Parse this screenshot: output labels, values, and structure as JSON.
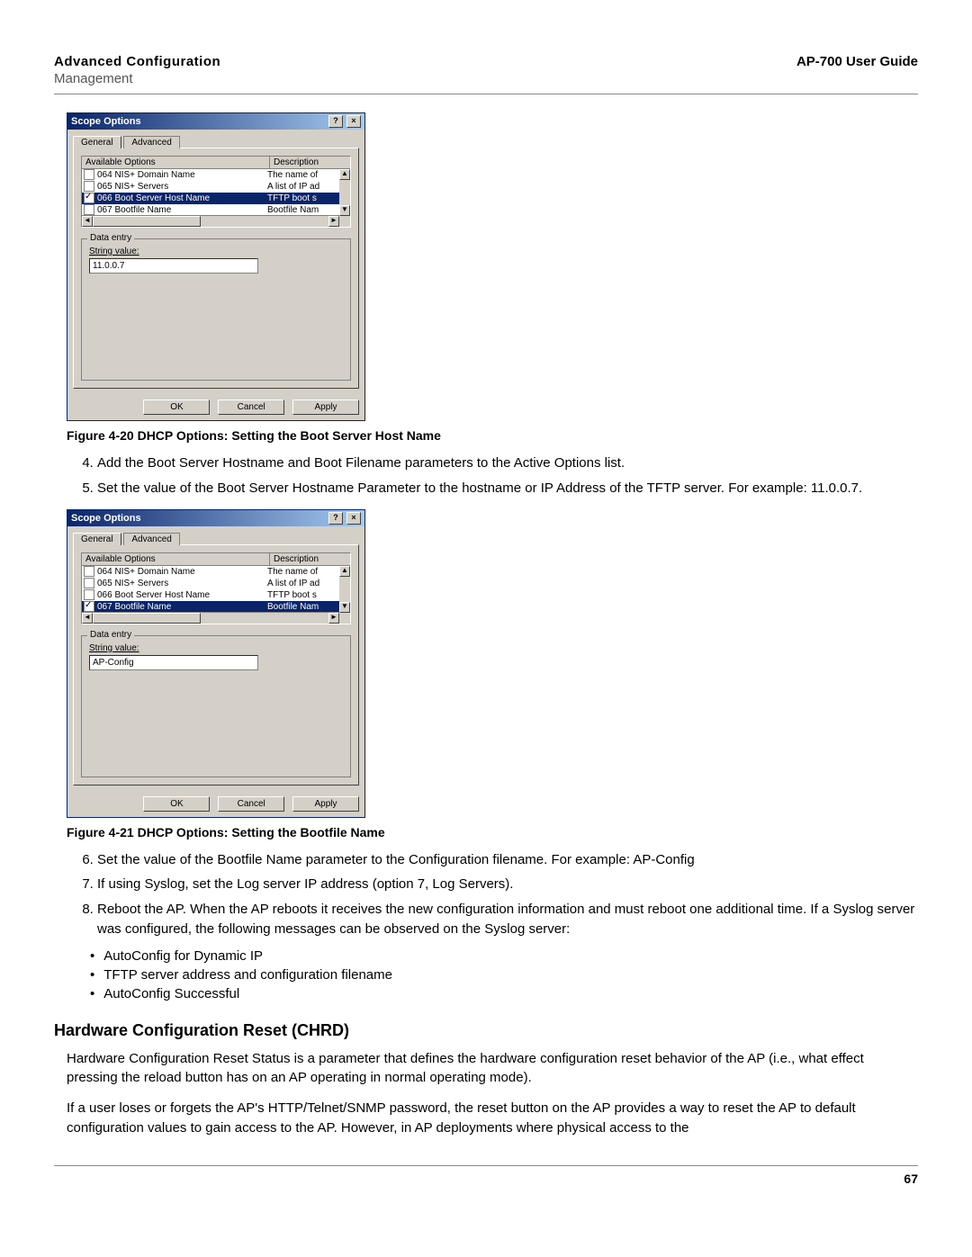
{
  "header": {
    "left_title": "Advanced Configuration",
    "subtitle": "Management",
    "right_title": "AP-700 User Guide"
  },
  "dialog1": {
    "title": "Scope Options",
    "tabs": {
      "general": "General",
      "advanced": "Advanced"
    },
    "columns": {
      "available": "Available Options",
      "description": "Description"
    },
    "rows": [
      {
        "checked": false,
        "name": "064 NIS+ Domain Name",
        "desc": "The name of"
      },
      {
        "checked": false,
        "name": "065 NIS+ Servers",
        "desc": "A list of IP ad"
      },
      {
        "checked": true,
        "selected": true,
        "name": "066 Boot Server Host Name",
        "desc": "TFTP boot s"
      },
      {
        "checked": false,
        "name": "067 Bootfile Name",
        "desc": "Bootfile Nam"
      }
    ],
    "data_entry_label": "Data entry",
    "string_label": "String value:",
    "string_value": "11.0.0.7",
    "buttons": {
      "ok": "OK",
      "cancel": "Cancel",
      "apply": "Apply"
    }
  },
  "caption1": "Figure 4-20 DHCP Options: Setting the Boot Server Host Name",
  "steps1": {
    "s4": "Add the Boot Server Hostname and Boot Filename parameters to the Active Options list.",
    "s5": "Set the value of the Boot Server Hostname Parameter to the hostname or IP Address of the TFTP server. For example: 11.0.0.7."
  },
  "dialog2": {
    "title": "Scope Options",
    "tabs": {
      "general": "General",
      "advanced": "Advanced"
    },
    "columns": {
      "available": "Available Options",
      "description": "Description"
    },
    "rows": [
      {
        "checked": false,
        "name": "064 NIS+ Domain Name",
        "desc": "The name of"
      },
      {
        "checked": false,
        "name": "065 NIS+ Servers",
        "desc": "A list of IP ad"
      },
      {
        "checked": false,
        "name": "066 Boot Server Host Name",
        "desc": "TFTP boot s"
      },
      {
        "checked": true,
        "selected": true,
        "name": "067 Bootfile Name",
        "desc": "Bootfile Nam"
      }
    ],
    "data_entry_label": "Data entry",
    "string_label": "String value:",
    "string_value": "AP-Config",
    "buttons": {
      "ok": "OK",
      "cancel": "Cancel",
      "apply": "Apply"
    }
  },
  "caption2": "Figure 4-21 DHCP Options: Setting the Bootfile Name",
  "steps2": {
    "s6": "Set the value of the Bootfile Name parameter to the Configuration filename. For example: AP-Config",
    "s7": "If using Syslog, set the Log server IP address (option 7, Log Servers).",
    "s8": "Reboot the AP. When the AP reboots it receives the new configuration information and must reboot one additional time. If a Syslog server was configured, the following messages can be observed on the Syslog server:"
  },
  "bullets": {
    "b1": "AutoConfig for Dynamic IP",
    "b2": "TFTP server address and configuration filename",
    "b3": "AutoConfig Successful"
  },
  "section_heading": "Hardware Configuration Reset (CHRD)",
  "para1": "Hardware Configuration Reset Status is a parameter that defines the hardware configuration reset behavior of the AP (i.e., what effect pressing the reload button has on an AP operating in normal operating mode).",
  "para2": "If a user loses or forgets the AP's HTTP/Telnet/SNMP password, the reset button on the AP provides a way to reset the AP to default configuration values to gain access to the AP. However, in AP deployments where physical access to the",
  "page_number": "67"
}
